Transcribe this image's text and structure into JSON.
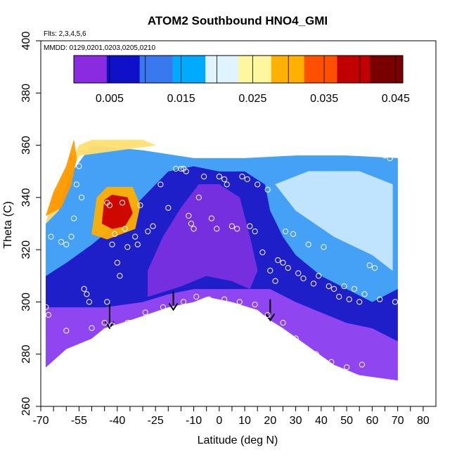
{
  "chart_data": {
    "type": "heatmap",
    "title": "ATOM2 Southbound HNO4_GMI",
    "notes": [
      "Flts: 2,3,4,5,6",
      "MMDD: 0129,0201,0203,0205,0210"
    ],
    "xlabel": "Latitude (deg N)",
    "ylabel": "Theta (C)",
    "xlim": [
      -70,
      85
    ],
    "ylim": [
      260,
      400
    ],
    "x_ticks": [
      -70,
      -55,
      -40,
      -25,
      -10,
      0,
      10,
      20,
      30,
      40,
      50,
      60,
      70,
      80
    ],
    "x_minor_ticks": [
      -65,
      -60,
      -50,
      -45,
      -35,
      -30,
      -20,
      -15,
      -5,
      5,
      15,
      25,
      35,
      45,
      55,
      65,
      75
    ],
    "y_ticks": [
      260,
      280,
      300,
      320,
      340,
      360,
      380,
      400
    ],
    "colorbar": {
      "range": [
        0,
        0.046
      ],
      "tick_labels": [
        "0.005",
        "0.015",
        "0.025",
        "0.035",
        "0.045"
      ],
      "tick_values": [
        0.005,
        0.015,
        0.025,
        0.035,
        0.045
      ],
      "boundaries": [
        0.005,
        0.01,
        0.015,
        0.02,
        0.025,
        0.03,
        0.035,
        0.04,
        0.045
      ],
      "colors": [
        "#8a2be2",
        "#1010c8",
        "#3a78f0",
        "#00aaff",
        "#e0f4ff",
        "#fff6a0",
        "#ffb000",
        "#ff5000",
        "#c00000",
        "#7a0000"
      ]
    },
    "regions": [
      {
        "name": "tropospheric-low-band",
        "color": "#8a3cf0",
        "polygon": [
          [
            -68,
            275
          ],
          [
            -60,
            282
          ],
          [
            -50,
            286
          ],
          [
            -45,
            290
          ],
          [
            -35,
            293
          ],
          [
            -20,
            298
          ],
          [
            -10,
            300
          ],
          [
            -5,
            302
          ],
          [
            5,
            300
          ],
          [
            15,
            297
          ],
          [
            20,
            293
          ],
          [
            25,
            290
          ],
          [
            35,
            283
          ],
          [
            45,
            276
          ],
          [
            55,
            272
          ],
          [
            70,
            270
          ],
          [
            70,
            285
          ],
          [
            60,
            290
          ],
          [
            50,
            292
          ],
          [
            40,
            296
          ],
          [
            30,
            300
          ],
          [
            20,
            305
          ],
          [
            10,
            305
          ],
          [
            0,
            305
          ],
          [
            -10,
            305
          ],
          [
            -20,
            303
          ],
          [
            -30,
            300
          ],
          [
            -45,
            298
          ],
          [
            -55,
            298
          ],
          [
            -68,
            298
          ]
        ]
      },
      {
        "name": "midlevel-dark-blue",
        "color": "#1414c8",
        "polygon": [
          [
            -68,
            298
          ],
          [
            -55,
            298
          ],
          [
            -45,
            298
          ],
          [
            -30,
            300
          ],
          [
            -20,
            303
          ],
          [
            -10,
            305
          ],
          [
            0,
            305
          ],
          [
            10,
            305
          ],
          [
            20,
            305
          ],
          [
            30,
            300
          ],
          [
            40,
            296
          ],
          [
            50,
            292
          ],
          [
            60,
            290
          ],
          [
            70,
            285
          ],
          [
            70,
            305
          ],
          [
            60,
            300
          ],
          [
            50,
            305
          ],
          [
            40,
            310
          ],
          [
            30,
            318
          ],
          [
            25,
            325
          ],
          [
            20,
            335
          ],
          [
            18,
            345
          ],
          [
            10,
            350
          ],
          [
            0,
            350
          ],
          [
            -10,
            352
          ],
          [
            -20,
            350
          ],
          [
            -30,
            340
          ],
          [
            -40,
            330
          ],
          [
            -50,
            322
          ],
          [
            -60,
            315
          ],
          [
            -68,
            310
          ]
        ]
      },
      {
        "name": "tropical-purple-core",
        "color": "#7a30e0",
        "polygon": [
          [
            -28,
            302
          ],
          [
            -15,
            306
          ],
          [
            -5,
            310
          ],
          [
            5,
            308
          ],
          [
            12,
            305
          ],
          [
            15,
            312
          ],
          [
            12,
            325
          ],
          [
            8,
            340
          ],
          [
            0,
            345
          ],
          [
            -8,
            345
          ],
          [
            -15,
            336
          ],
          [
            -22,
            325
          ],
          [
            -28,
            312
          ]
        ]
      },
      {
        "name": "upper-light-blue",
        "color": "#3a9cf6",
        "polygon": [
          [
            -68,
            310
          ],
          [
            -60,
            315
          ],
          [
            -50,
            322
          ],
          [
            -40,
            330
          ],
          [
            -30,
            340
          ],
          [
            -20,
            350
          ],
          [
            -10,
            352
          ],
          [
            0,
            350
          ],
          [
            10,
            350
          ],
          [
            18,
            345
          ],
          [
            20,
            335
          ],
          [
            25,
            325
          ],
          [
            30,
            318
          ],
          [
            40,
            310
          ],
          [
            50,
            305
          ],
          [
            60,
            300
          ],
          [
            70,
            305
          ],
          [
            70,
            355
          ],
          [
            50,
            356
          ],
          [
            30,
            356
          ],
          [
            10,
            355
          ],
          [
            -10,
            355
          ],
          [
            -30,
            358
          ],
          [
            -50,
            360
          ],
          [
            -65,
            340
          ],
          [
            -68,
            330
          ]
        ]
      },
      {
        "name": "northern-pale-wedge",
        "color": "#c8e8ff",
        "polygon": [
          [
            22,
            345
          ],
          [
            30,
            335
          ],
          [
            45,
            325
          ],
          [
            60,
            318
          ],
          [
            68,
            312
          ],
          [
            68,
            345
          ],
          [
            55,
            350
          ],
          [
            35,
            350
          ]
        ]
      },
      {
        "name": "southern-upper-yellow",
        "color": "#ffe070",
        "polygon": [
          [
            -68,
            330
          ],
          [
            -65,
            340
          ],
          [
            -60,
            350
          ],
          [
            -55,
            360
          ],
          [
            -50,
            362
          ],
          [
            -30,
            362
          ],
          [
            -25,
            360
          ],
          [
            -40,
            358
          ],
          [
            -55,
            356
          ],
          [
            -60,
            345
          ],
          [
            -63,
            335
          ]
        ]
      },
      {
        "name": "southern-upper-orange",
        "color": "#ff9a00",
        "polygon": [
          [
            -68,
            333
          ],
          [
            -65,
            342
          ],
          [
            -60,
            352
          ],
          [
            -57,
            362
          ],
          [
            -56,
            355
          ],
          [
            -58,
            345
          ],
          [
            -62,
            336
          ]
        ]
      },
      {
        "name": "hotspot-outer",
        "color": "#ffb000",
        "polygon": [
          [
            -50,
            326
          ],
          [
            -48,
            340
          ],
          [
            -44,
            344
          ],
          [
            -34,
            344
          ],
          [
            -31,
            337
          ],
          [
            -33,
            328
          ],
          [
            -44,
            324
          ]
        ]
      },
      {
        "name": "hotspot-core",
        "color": "#cc0000",
        "polygon": [
          [
            -46,
            330
          ],
          [
            -45,
            339
          ],
          [
            -42,
            341
          ],
          [
            -36,
            340
          ],
          [
            -34,
            334
          ],
          [
            -37,
            329
          ],
          [
            -42,
            328
          ]
        ]
      }
    ],
    "arrows": [
      {
        "x": -43,
        "y_from": 299,
        "y_to": 290
      },
      {
        "x": -18,
        "y_from": 304,
        "y_to": 297
      },
      {
        "x": 20,
        "y_from": 301,
        "y_to": 293
      }
    ],
    "sample_points": [
      {
        "x": -68,
        "y": 298
      },
      {
        "x": -67,
        "y": 295
      },
      {
        "x": -66,
        "y": 325
      },
      {
        "x": -62,
        "y": 323
      },
      {
        "x": -60,
        "y": 322
      },
      {
        "x": -58,
        "y": 325
      },
      {
        "x": -57,
        "y": 332
      },
      {
        "x": -56,
        "y": 345
      },
      {
        "x": -55,
        "y": 352
      },
      {
        "x": -54,
        "y": 340
      },
      {
        "x": -53,
        "y": 305
      },
      {
        "x": -52,
        "y": 303
      },
      {
        "x": -51,
        "y": 300
      },
      {
        "x": -50,
        "y": 290
      },
      {
        "x": -49,
        "y": 283
      },
      {
        "x": -48,
        "y": 279
      },
      {
        "x": -47,
        "y": 281
      },
      {
        "x": -46,
        "y": 286
      },
      {
        "x": -45,
        "y": 292
      },
      {
        "x": -44,
        "y": 300
      },
      {
        "x": -44,
        "y": 338
      },
      {
        "x": -43,
        "y": 337
      },
      {
        "x": -42,
        "y": 322
      },
      {
        "x": -41,
        "y": 326
      },
      {
        "x": -40,
        "y": 315
      },
      {
        "x": -39,
        "y": 310
      },
      {
        "x": -38,
        "y": 338
      },
      {
        "x": -37,
        "y": 328
      },
      {
        "x": -36,
        "y": 321
      },
      {
        "x": -35,
        "y": 292
      },
      {
        "x": -33,
        "y": 325
      },
      {
        "x": -32,
        "y": 322
      },
      {
        "x": -31,
        "y": 337
      },
      {
        "x": -28,
        "y": 327
      },
      {
        "x": -26,
        "y": 329
      },
      {
        "x": -23,
        "y": 345
      },
      {
        "x": -20,
        "y": 336
      },
      {
        "x": -17,
        "y": 351
      },
      {
        "x": -15,
        "y": 351
      },
      {
        "x": -14,
        "y": 351
      },
      {
        "x": -13,
        "y": 350
      },
      {
        "x": -12,
        "y": 333
      },
      {
        "x": -11,
        "y": 330
      },
      {
        "x": -10,
        "y": 328
      },
      {
        "x": -8,
        "y": 340
      },
      {
        "x": -6,
        "y": 348
      },
      {
        "x": -3,
        "y": 332
      },
      {
        "x": -1,
        "y": 328
      },
      {
        "x": 0,
        "y": 348
      },
      {
        "x": 2,
        "y": 347
      },
      {
        "x": 3,
        "y": 345
      },
      {
        "x": 5,
        "y": 329
      },
      {
        "x": 7,
        "y": 328
      },
      {
        "x": 9,
        "y": 348
      },
      {
        "x": 11,
        "y": 347
      },
      {
        "x": 12,
        "y": 329
      },
      {
        "x": 14,
        "y": 327
      },
      {
        "x": 15,
        "y": 345
      },
      {
        "x": 17,
        "y": 319
      },
      {
        "x": 19,
        "y": 343
      },
      {
        "x": 20,
        "y": 312
      },
      {
        "x": 22,
        "y": 308
      },
      {
        "x": 23,
        "y": 316
      },
      {
        "x": 25,
        "y": 315
      },
      {
        "x": 26,
        "y": 327
      },
      {
        "x": 27,
        "y": 313
      },
      {
        "x": 29,
        "y": 326
      },
      {
        "x": 31,
        "y": 311
      },
      {
        "x": 33,
        "y": 309
      },
      {
        "x": 35,
        "y": 322
      },
      {
        "x": 37,
        "y": 307
      },
      {
        "x": 39,
        "y": 310
      },
      {
        "x": 41,
        "y": 321
      },
      {
        "x": 43,
        "y": 306
      },
      {
        "x": 45,
        "y": 305
      },
      {
        "x": 47,
        "y": 302
      },
      {
        "x": 49,
        "y": 306
      },
      {
        "x": 51,
        "y": 301
      },
      {
        "x": 53,
        "y": 305
      },
      {
        "x": 55,
        "y": 300
      },
      {
        "x": 57,
        "y": 303
      },
      {
        "x": 59,
        "y": 314
      },
      {
        "x": 61,
        "y": 313
      },
      {
        "x": 63,
        "y": 301
      },
      {
        "x": 65,
        "y": 356
      },
      {
        "x": 67,
        "y": 355
      },
      {
        "x": 69,
        "y": 300
      },
      {
        "x": 50,
        "y": 275
      },
      {
        "x": 56,
        "y": 276
      },
      {
        "x": 44,
        "y": 277
      },
      {
        "x": 38,
        "y": 280
      },
      {
        "x": 30,
        "y": 286
      },
      {
        "x": 25,
        "y": 292
      },
      {
        "x": 19,
        "y": 295
      },
      {
        "x": 14,
        "y": 299
      },
      {
        "x": 8,
        "y": 300
      },
      {
        "x": 2,
        "y": 301
      },
      {
        "x": -4,
        "y": 301
      },
      {
        "x": -9,
        "y": 302
      },
      {
        "x": -14,
        "y": 300
      },
      {
        "x": -22,
        "y": 298
      },
      {
        "x": -29,
        "y": 296
      },
      {
        "x": -36,
        "y": 292
      },
      {
        "x": -42,
        "y": 291
      },
      {
        "x": -55,
        "y": 282
      },
      {
        "x": -60,
        "y": 289
      }
    ]
  }
}
